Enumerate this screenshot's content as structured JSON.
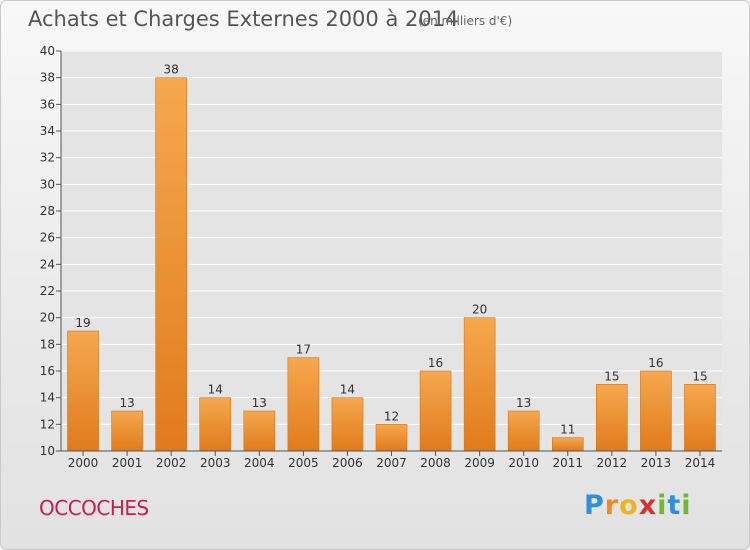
{
  "header": {
    "title": "Achats et Charges Externes 2000 à 2014",
    "unit": "(en milliers d'€)"
  },
  "footer": {
    "town": "OCCOCHES",
    "brand_letters": [
      "P",
      "r",
      "o",
      "x",
      "i",
      "t",
      "i"
    ]
  },
  "colors": {
    "bar_light": "#f6a84f",
    "bar_dark": "#e07b1c",
    "town": "#c71b52"
  },
  "chart_data": {
    "type": "bar",
    "title": "Achats et Charges Externes 2000 à 2014",
    "categories": [
      "2000",
      "2001",
      "2002",
      "2003",
      "2004",
      "2005",
      "2006",
      "2007",
      "2008",
      "2009",
      "2010",
      "2011",
      "2012",
      "2013",
      "2014"
    ],
    "values": [
      19,
      13,
      38,
      14,
      13,
      17,
      14,
      12,
      16,
      20,
      13,
      11,
      15,
      16,
      15
    ],
    "ylim": [
      10,
      40
    ],
    "yticks": [
      10,
      12,
      14,
      16,
      18,
      20,
      22,
      24,
      26,
      28,
      30,
      32,
      34,
      36,
      38,
      40
    ],
    "grid": true,
    "legend": "none"
  }
}
